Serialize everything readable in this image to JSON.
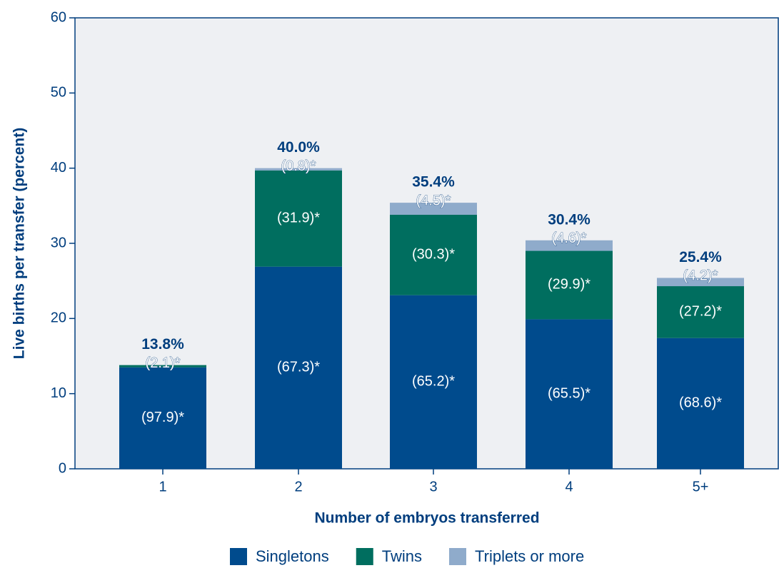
{
  "chart_data": {
    "type": "stacked_bar",
    "xlabel": "Number of embryos transferred",
    "ylabel": "Live births per transfer (percent)",
    "categories": [
      "1",
      "2",
      "3",
      "4",
      "5+"
    ],
    "series": [
      {
        "name": "Singletons",
        "color": "#004b8d",
        "values": [
          13.5,
          26.9,
          23.1,
          19.9,
          17.4
        ],
        "share_labels": [
          "(97.9)*",
          "(67.3)*",
          "(65.2)*",
          "(65.5)*",
          "(68.6)*"
        ]
      },
      {
        "name": "Twins",
        "color": "#006e5f",
        "values": [
          0.3,
          12.8,
          10.7,
          9.1,
          6.9
        ],
        "share_labels": [
          "(2.1)*",
          "(31.9)*",
          "(30.3)*",
          "(29.9)*",
          "(27.2)*"
        ]
      },
      {
        "name": "Triplets or more",
        "color": "#8fabcb",
        "values": [
          0,
          0.3,
          1.6,
          1.4,
          1.1
        ],
        "share_labels": [
          null,
          "(0.8)*",
          "(4.5)*",
          "(4.6)*",
          "(4.2)*"
        ]
      }
    ],
    "total_labels": [
      "13.8%",
      "40.0%",
      "35.4%",
      "30.4%",
      "25.4%"
    ],
    "ylim": [
      0,
      60
    ],
    "yticks": [
      0,
      10,
      20,
      30,
      40,
      50,
      60
    ]
  }
}
